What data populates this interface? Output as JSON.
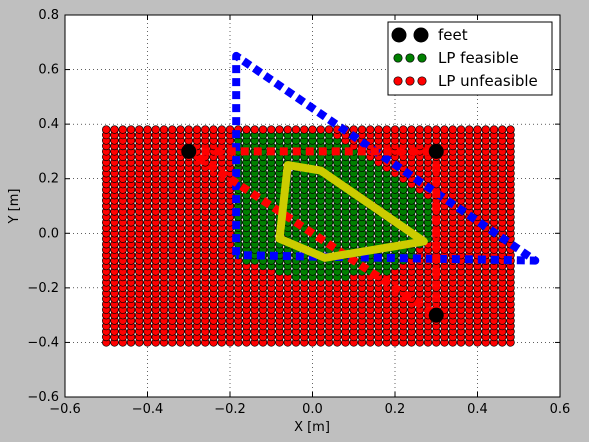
{
  "chart_data": {
    "type": "scatter",
    "title": "",
    "xlabel": "X [m]",
    "ylabel": "Y [m]",
    "xlim": [
      -0.6,
      0.6
    ],
    "ylim": [
      -0.6,
      0.8
    ],
    "xticks": [
      -0.6,
      -0.4,
      -0.2,
      0.0,
      0.2,
      0.4,
      0.6
    ],
    "xtick_labels": [
      "−0.6",
      "−0.4",
      "−0.2",
      "0.0",
      "0.2",
      "0.4",
      "0.6"
    ],
    "yticks": [
      -0.6,
      -0.4,
      -0.2,
      0.0,
      0.2,
      0.4,
      0.6,
      0.8
    ],
    "ytick_labels": [
      "−0.6",
      "−0.4",
      "−0.2",
      "0.0",
      "0.2",
      "0.4",
      "0.6",
      "0.8"
    ],
    "grid": true,
    "legend_position": "top-right",
    "legend": [
      "feet",
      "LP feasible",
      "LP unfeasible"
    ],
    "grid_points": {
      "x_start": -0.5,
      "x_end": 0.48,
      "y_start": -0.4,
      "y_end": 0.38,
      "step": 0.02
    },
    "series": [
      {
        "name": "feet",
        "color": "#000000",
        "points": [
          [
            -0.3,
            0.3
          ],
          [
            0.3,
            0.3
          ],
          [
            0.3,
            -0.3
          ]
        ]
      },
      {
        "name": "LP feasible",
        "color": "#008000",
        "region": [
          [
            -0.18,
            0.38
          ],
          [
            0.02,
            0.38
          ],
          [
            0.28,
            0.14
          ],
          [
            0.3,
            0.0
          ],
          [
            0.2,
            -0.14
          ],
          [
            0.0,
            -0.18
          ],
          [
            -0.18,
            -0.1
          ]
        ]
      },
      {
        "name": "LP unfeasible",
        "color": "#ff0000",
        "region": "all remaining grid points"
      }
    ],
    "polygons": [
      {
        "color": "#0000ff",
        "style": "dashed",
        "closed": false,
        "points": [
          [
            -0.185,
            -0.08
          ],
          [
            -0.185,
            0.65
          ],
          [
            0.54,
            -0.1
          ],
          [
            -0.185,
            -0.08
          ]
        ]
      },
      {
        "color": "#ff0000",
        "style": "dashed",
        "closed": true,
        "points": [
          [
            -0.3,
            0.3
          ],
          [
            0.3,
            0.3
          ],
          [
            0.3,
            -0.3
          ]
        ]
      },
      {
        "color": "#cccc00",
        "style": "solid",
        "closed": true,
        "points": [
          [
            -0.06,
            0.25
          ],
          [
            0.02,
            0.23
          ],
          [
            0.27,
            -0.03
          ],
          [
            0.03,
            -0.09
          ],
          [
            -0.08,
            -0.02
          ]
        ]
      }
    ]
  }
}
